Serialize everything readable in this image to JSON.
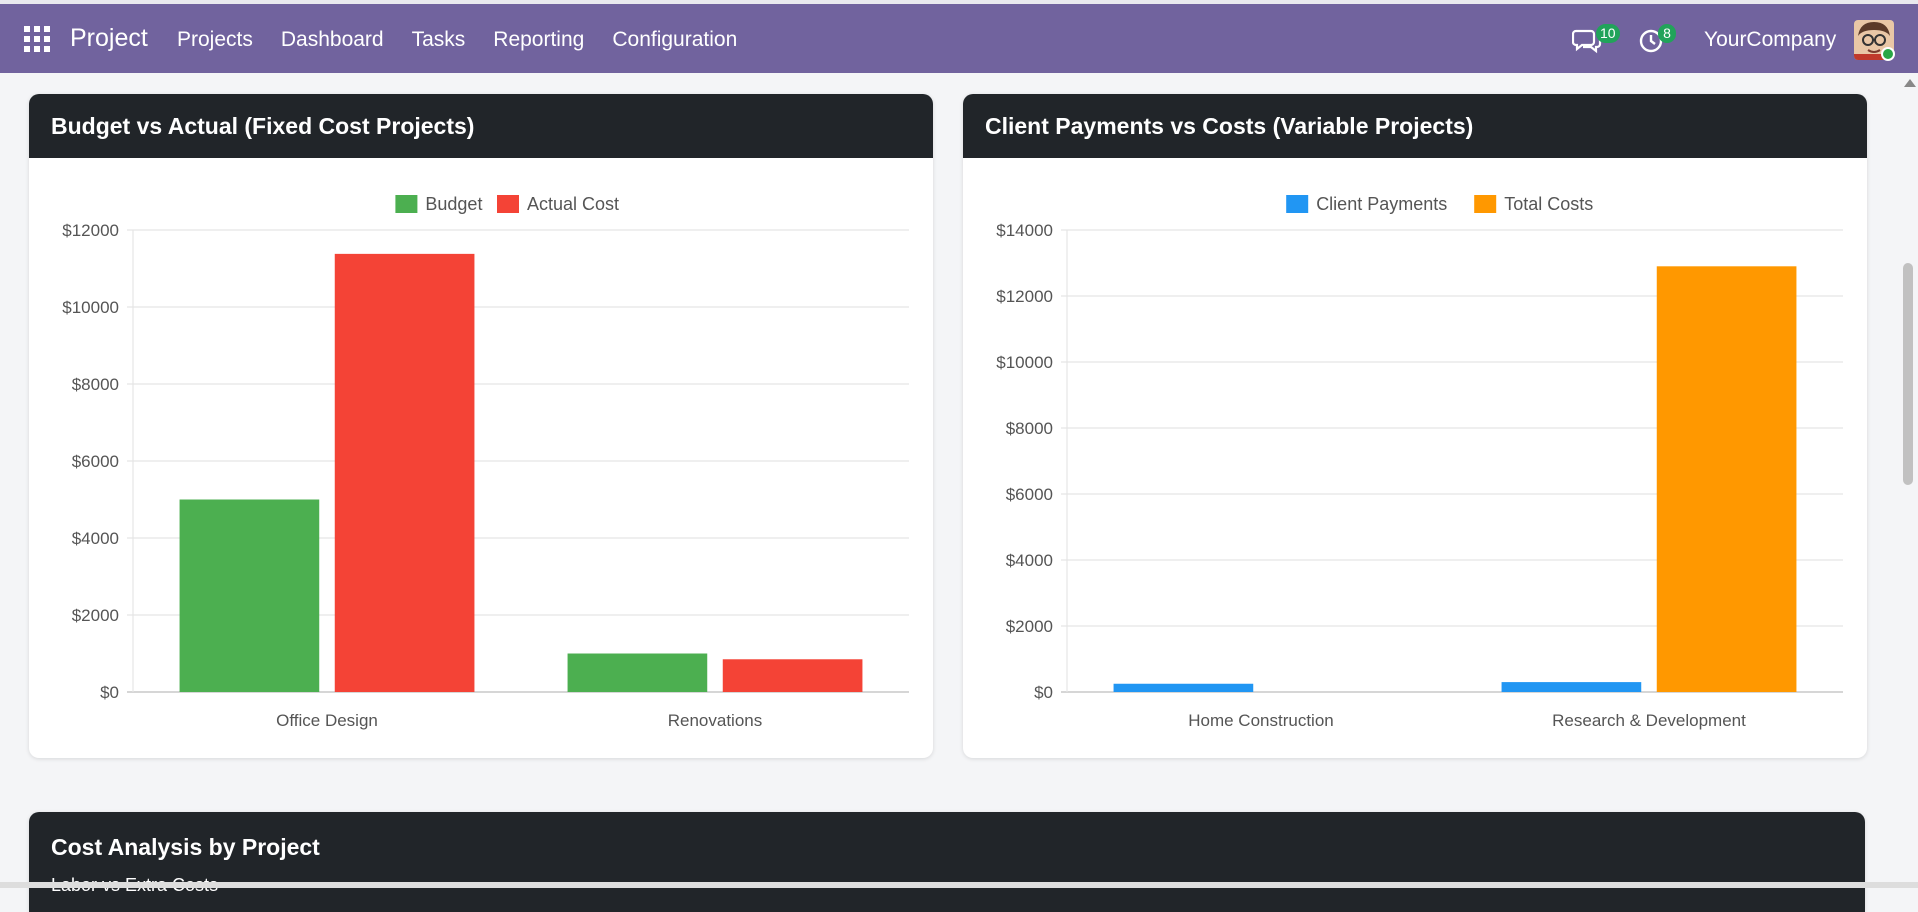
{
  "nav": {
    "app_name": "Project",
    "menu": [
      "Projects",
      "Dashboard",
      "Tasks",
      "Reporting",
      "Configuration"
    ],
    "messages_count": "10",
    "activities_count": "8",
    "company": "YourCompany"
  },
  "cards": {
    "budget_title": "Budget vs Actual (Fixed Cost Projects)",
    "payments_title": "Client Payments vs Costs (Variable Projects)",
    "cost_title": "Cost Analysis by Project",
    "cost_subtitle": "Labor vs Extra Costs"
  },
  "colors": {
    "brand": "#71639e",
    "budget": "#4caf50",
    "actual": "#f44336",
    "payments": "#2196f3",
    "costs": "#ff9800"
  },
  "chart_data": [
    {
      "type": "bar",
      "title": "Budget vs Actual (Fixed Cost Projects)",
      "categories": [
        "Office Design",
        "Renovations"
      ],
      "series": [
        {
          "name": "Budget",
          "values": [
            5000,
            1000
          ],
          "color": "#4caf50"
        },
        {
          "name": "Actual Cost",
          "values": [
            11380,
            850
          ],
          "color": "#f44336"
        }
      ],
      "ylim": [
        0,
        12000
      ],
      "yticks": [
        "$0",
        "$2000",
        "$4000",
        "$6000",
        "$8000",
        "$10000",
        "$12000"
      ],
      "legend": "top-center",
      "grid": true
    },
    {
      "type": "bar",
      "title": "Client Payments vs Costs (Variable Projects)",
      "categories": [
        "Home Construction",
        "Research & Development"
      ],
      "series": [
        {
          "name": "Client Payments",
          "values": [
            250,
            300
          ],
          "color": "#2196f3"
        },
        {
          "name": "Total Costs",
          "values": [
            0,
            12900
          ],
          "color": "#ff9800"
        }
      ],
      "ylim": [
        0,
        14000
      ],
      "yticks": [
        "$0",
        "$2000",
        "$4000",
        "$6000",
        "$8000",
        "$10000",
        "$12000",
        "$14000"
      ],
      "legend": "top-center",
      "grid": true
    }
  ]
}
